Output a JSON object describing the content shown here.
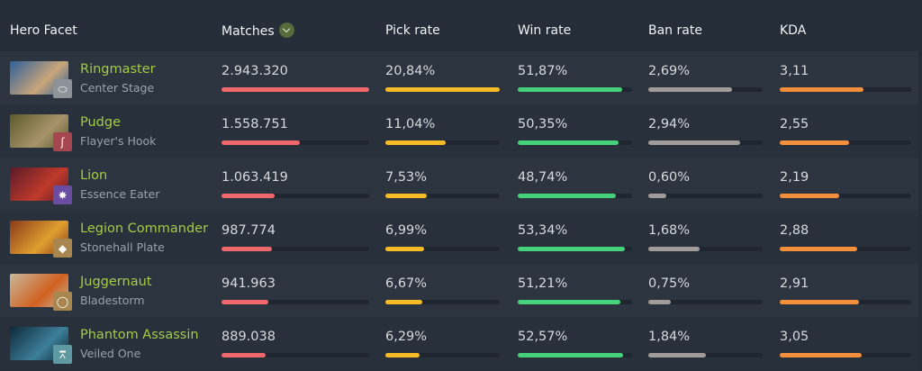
{
  "header": {
    "hero_facet": "Hero Facet",
    "matches": "Matches",
    "pick_rate": "Pick rate",
    "win_rate": "Win rate",
    "ban_rate": "Ban rate",
    "kda": "KDA",
    "sort_icon": "chevron-down-icon"
  },
  "colors": {
    "hero_name": "#a3cc46",
    "matches_bar": "#f0686b",
    "pick_bar": "#f6bb25",
    "win_bar": "#45d27a",
    "ban_bar": "#a19c9a",
    "kda_bar": "#f58f3b",
    "track": "#1f2630"
  },
  "rows": [
    {
      "hero": "Ringmaster",
      "facet": "Center Stage",
      "facet_icon": "stage-icon",
      "facet_color": "#8e939a",
      "portrait": [
        "#2f5f9a",
        "#c9a67a"
      ],
      "matches": "2.943.320",
      "pick": "20,84%",
      "win": "51,87%",
      "ban": "2,69%",
      "kda": "3,11",
      "bars": {
        "matches": 100,
        "pick": 100,
        "win": 91,
        "ban": 73,
        "kda": 64
      }
    },
    {
      "hero": "Pudge",
      "facet": "Flayer's Hook",
      "facet_icon": "hook-icon",
      "facet_color": "#a6464f",
      "portrait": [
        "#5d5a2a",
        "#a8936b"
      ],
      "matches": "1.558.751",
      "pick": "11,04%",
      "win": "50,35%",
      "ban": "2,94%",
      "kda": "2,55",
      "bars": {
        "matches": 53,
        "pick": 53,
        "win": 88,
        "ban": 80,
        "kda": 53
      }
    },
    {
      "hero": "Lion",
      "facet": "Essence Eater",
      "facet_icon": "essence-icon",
      "facet_color": "#6a4ca0",
      "portrait": [
        "#5a1a2a",
        "#c03a2a"
      ],
      "matches": "1.063.419",
      "pick": "7,53%",
      "win": "48,74%",
      "ban": "0,60%",
      "kda": "2,19",
      "bars": {
        "matches": 36,
        "pick": 36,
        "win": 86,
        "ban": 16,
        "kda": 45
      }
    },
    {
      "hero": "Legion Commander",
      "facet": "Stonehall Plate",
      "facet_icon": "shield-icon",
      "facet_color": "#a88650",
      "portrait": [
        "#8a3a1a",
        "#e0a030"
      ],
      "matches": "987.774",
      "pick": "6,99%",
      "win": "53,34%",
      "ban": "1,68%",
      "kda": "2,88",
      "bars": {
        "matches": 34,
        "pick": 34,
        "win": 94,
        "ban": 45,
        "kda": 59
      }
    },
    {
      "hero": "Juggernaut",
      "facet": "Bladestorm",
      "facet_icon": "ring-icon",
      "facet_color": "#a88650",
      "portrait": [
        "#c8b89a",
        "#d06020"
      ],
      "matches": "941.963",
      "pick": "6,67%",
      "win": "51,21%",
      "ban": "0,75%",
      "kda": "2,91",
      "bars": {
        "matches": 32,
        "pick": 32,
        "win": 90,
        "ban": 20,
        "kda": 60
      }
    },
    {
      "hero": "Phantom Assassin",
      "facet": "Veiled One",
      "facet_icon": "veil-icon",
      "facet_color": "#5f9aa3",
      "portrait": [
        "#0e2a3a",
        "#3d7f9a"
      ],
      "matches": "889.038",
      "pick": "6,29%",
      "win": "52,57%",
      "ban": "1,84%",
      "kda": "3,05",
      "bars": {
        "matches": 30,
        "pick": 30,
        "win": 92,
        "ban": 50,
        "kda": 62
      }
    }
  ]
}
